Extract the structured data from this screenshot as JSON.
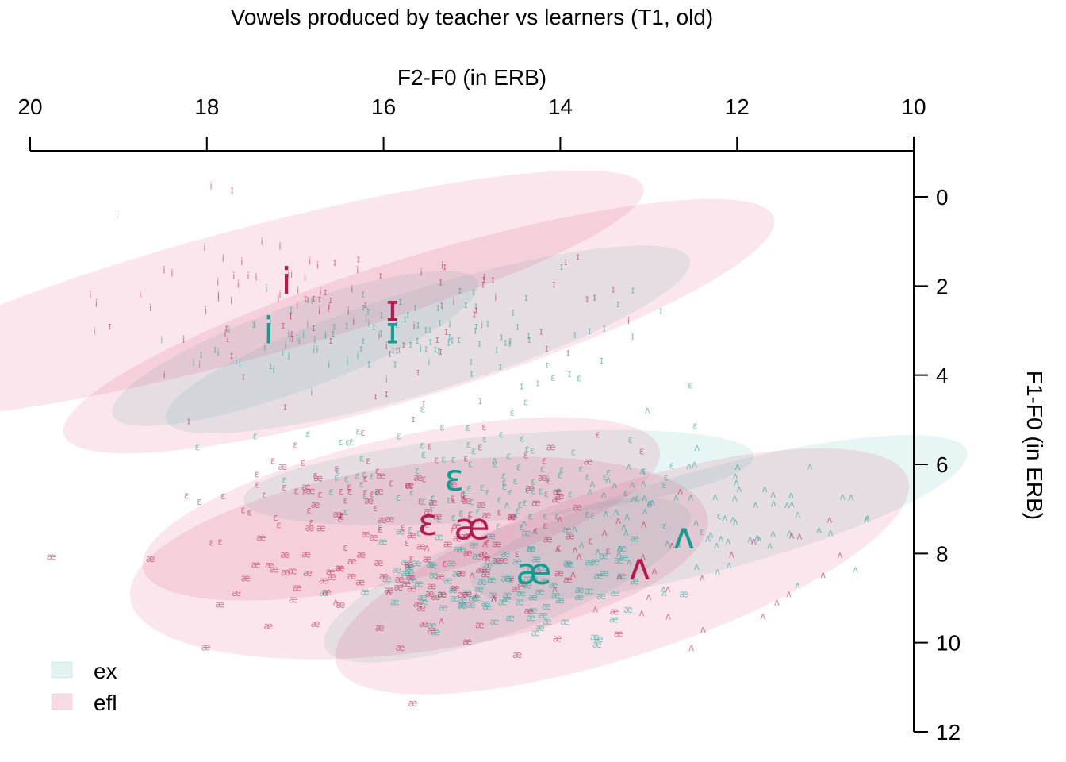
{
  "chart_data": {
    "type": "scatter",
    "title": "Vowels produced by teacher vs learners (T1, old)",
    "xlabel": "F2-F0 (in ERB)",
    "ylabel": "F1-F0 (in ERB)",
    "xlim": [
      20,
      10
    ],
    "ylim": [
      12,
      -0.5
    ],
    "x_reversed": true,
    "y_reversed": true,
    "x_axis_position": "top",
    "y_axis_position": "right",
    "xticks": [
      "20",
      "18",
      "16",
      "14",
      "12",
      "10"
    ],
    "yticks": [
      "0",
      "2",
      "4",
      "6",
      "8",
      "10",
      "12"
    ],
    "grid": false,
    "legend": {
      "position": "bottom-left",
      "entries": [
        "ex",
        "efl"
      ]
    },
    "colors": {
      "ex": "#179c91",
      "efl": "#b5194f"
    },
    "series": [
      {
        "name": "ex",
        "color": "#179c91",
        "centroids": [
          {
            "vowel": "i",
            "f2": 17.3,
            "f1": 3.0
          },
          {
            "vowel": "ɪ",
            "f2": 15.9,
            "f1": 3.0
          },
          {
            "vowel": "ɛ",
            "f2": 15.2,
            "f1": 6.3
          },
          {
            "vowel": "æ",
            "f2": 14.3,
            "f1": 8.4
          },
          {
            "vowel": "ʌ",
            "f2": 12.6,
            "f1": 7.6
          }
        ],
        "ellipses": [
          {
            "vowel": "i",
            "f2": 17.0,
            "f1": 3.4,
            "a": 2.2,
            "b": 0.95,
            "angle": -20
          },
          {
            "vowel": "ɪ",
            "f2": 15.5,
            "f1": 3.2,
            "a": 3.1,
            "b": 1.15,
            "angle": -17
          },
          {
            "vowel": "ɛ",
            "f2": 14.7,
            "f1": 6.3,
            "a": 2.9,
            "b": 0.95,
            "angle": -5
          },
          {
            "vowel": "æ",
            "f2": 14.6,
            "f1": 8.6,
            "a": 2.2,
            "b": 1.15,
            "angle": -20
          },
          {
            "vowel": "ʌ",
            "f2": 12.2,
            "f1": 7.2,
            "a": 2.9,
            "b": 1.15,
            "angle": -15
          }
        ]
      },
      {
        "name": "efl",
        "color": "#b5194f",
        "centroids": [
          {
            "vowel": "i",
            "f2": 17.1,
            "f1": 1.9
          },
          {
            "vowel": "ɪ",
            "f2": 15.9,
            "f1": 2.5
          },
          {
            "vowel": "ɛ",
            "f2": 15.5,
            "f1": 7.3
          },
          {
            "vowel": "æ",
            "f2": 15.0,
            "f1": 7.4
          },
          {
            "vowel": "ʌ",
            "f2": 13.1,
            "f1": 8.3
          }
        ],
        "ellipses": [
          {
            "vowel": "i",
            "f2": 17.6,
            "f1": 2.2,
            "a": 4.7,
            "b": 1.45,
            "angle": -15
          },
          {
            "vowel": "ɪ",
            "f2": 15.6,
            "f1": 2.9,
            "a": 4.2,
            "b": 1.55,
            "angle": -17
          },
          {
            "vowel": "ɛ",
            "f2": 15.8,
            "f1": 7.0,
            "a": 3.0,
            "b": 1.6,
            "angle": -13
          },
          {
            "vowel": "æ",
            "f2": 15.6,
            "f1": 8.1,
            "a": 3.3,
            "b": 2.1,
            "angle": -8
          },
          {
            "vowel": "ʌ",
            "f2": 13.3,
            "f1": 8.4,
            "a": 3.4,
            "b": 1.9,
            "angle": -18
          }
        ]
      }
    ],
    "token_clouds": [
      {
        "series": "ex",
        "vowel": "i",
        "f2": 17.0,
        "f1": 3.4,
        "sd_f2": 0.8,
        "sd_f1": 0.5,
        "n": 40
      },
      {
        "series": "ex",
        "vowel": "ɪ",
        "f2": 15.3,
        "f1": 3.3,
        "sd_f2": 1.1,
        "sd_f1": 0.6,
        "n": 75
      },
      {
        "series": "ex",
        "vowel": "ɛ",
        "f2": 14.8,
        "f1": 6.3,
        "sd_f2": 1.2,
        "sd_f1": 0.7,
        "n": 110
      },
      {
        "series": "ex",
        "vowel": "æ",
        "f2": 14.5,
        "f1": 8.7,
        "sd_f2": 0.8,
        "sd_f1": 0.6,
        "n": 110
      },
      {
        "series": "ex",
        "vowel": "ʌ",
        "f2": 12.3,
        "f1": 7.2,
        "sd_f2": 1.0,
        "sd_f1": 0.7,
        "n": 80
      },
      {
        "series": "efl",
        "vowel": "i",
        "f2": 17.4,
        "f1": 2.3,
        "sd_f2": 1.2,
        "sd_f1": 0.8,
        "n": 50
      },
      {
        "series": "efl",
        "vowel": "ɪ",
        "f2": 15.8,
        "f1": 2.8,
        "sd_f2": 1.3,
        "sd_f1": 0.9,
        "n": 55
      },
      {
        "series": "efl",
        "vowel": "ɛ",
        "f2": 15.8,
        "f1": 7.0,
        "sd_f2": 1.1,
        "sd_f1": 0.8,
        "n": 75
      },
      {
        "series": "efl",
        "vowel": "æ",
        "f2": 15.6,
        "f1": 8.2,
        "sd_f2": 1.3,
        "sd_f1": 1.1,
        "n": 120
      },
      {
        "series": "efl",
        "vowel": "ʌ",
        "f2": 13.3,
        "f1": 8.4,
        "sd_f2": 1.1,
        "sd_f1": 0.9,
        "n": 45
      }
    ]
  }
}
